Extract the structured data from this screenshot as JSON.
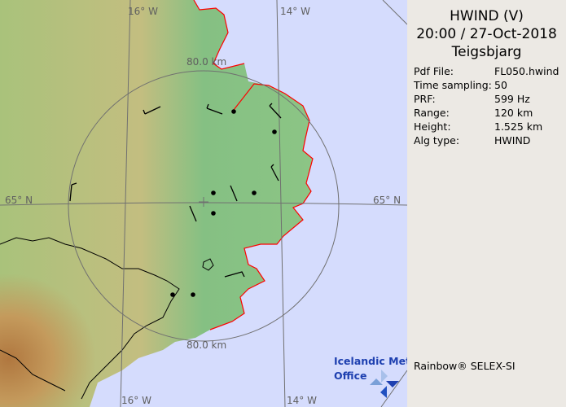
{
  "map": {
    "lon_labels_top": [
      "16° W",
      "14° W"
    ],
    "lon_labels_bottom": [
      "16° W",
      "14° W"
    ],
    "lat_labels": [
      "65° N",
      "65° N"
    ],
    "range_ring_labels": [
      "80.0 km",
      "80.0 km"
    ],
    "radar_site": "Teigsbjarg",
    "colors": {
      "sea": "#d5dcfd",
      "lowland": "#7fbf7f",
      "highland": "#c9a46a",
      "glacier_outline": "#000000",
      "coast_outline": "#ff0000",
      "grid": "#707070"
    },
    "logo": {
      "line1": "Icelandic Met",
      "line2": "Office"
    }
  },
  "panel": {
    "product": "HWIND (V)",
    "datetime": "20:00 / 27-Oct-2018",
    "site": "Teigsbjarg",
    "params": [
      {
        "key": "Pdf File:",
        "value": "FL050.hwind"
      },
      {
        "key": "Time sampling:",
        "value": "50"
      },
      {
        "key": "PRF:",
        "value": "599 Hz"
      },
      {
        "key": "Range:",
        "value": "120 km"
      },
      {
        "key": "Height:",
        "value": "1.525 km"
      },
      {
        "key": "Alg type:",
        "value": "HWIND"
      }
    ],
    "credit": "Rainbow® SELEX-SI"
  }
}
